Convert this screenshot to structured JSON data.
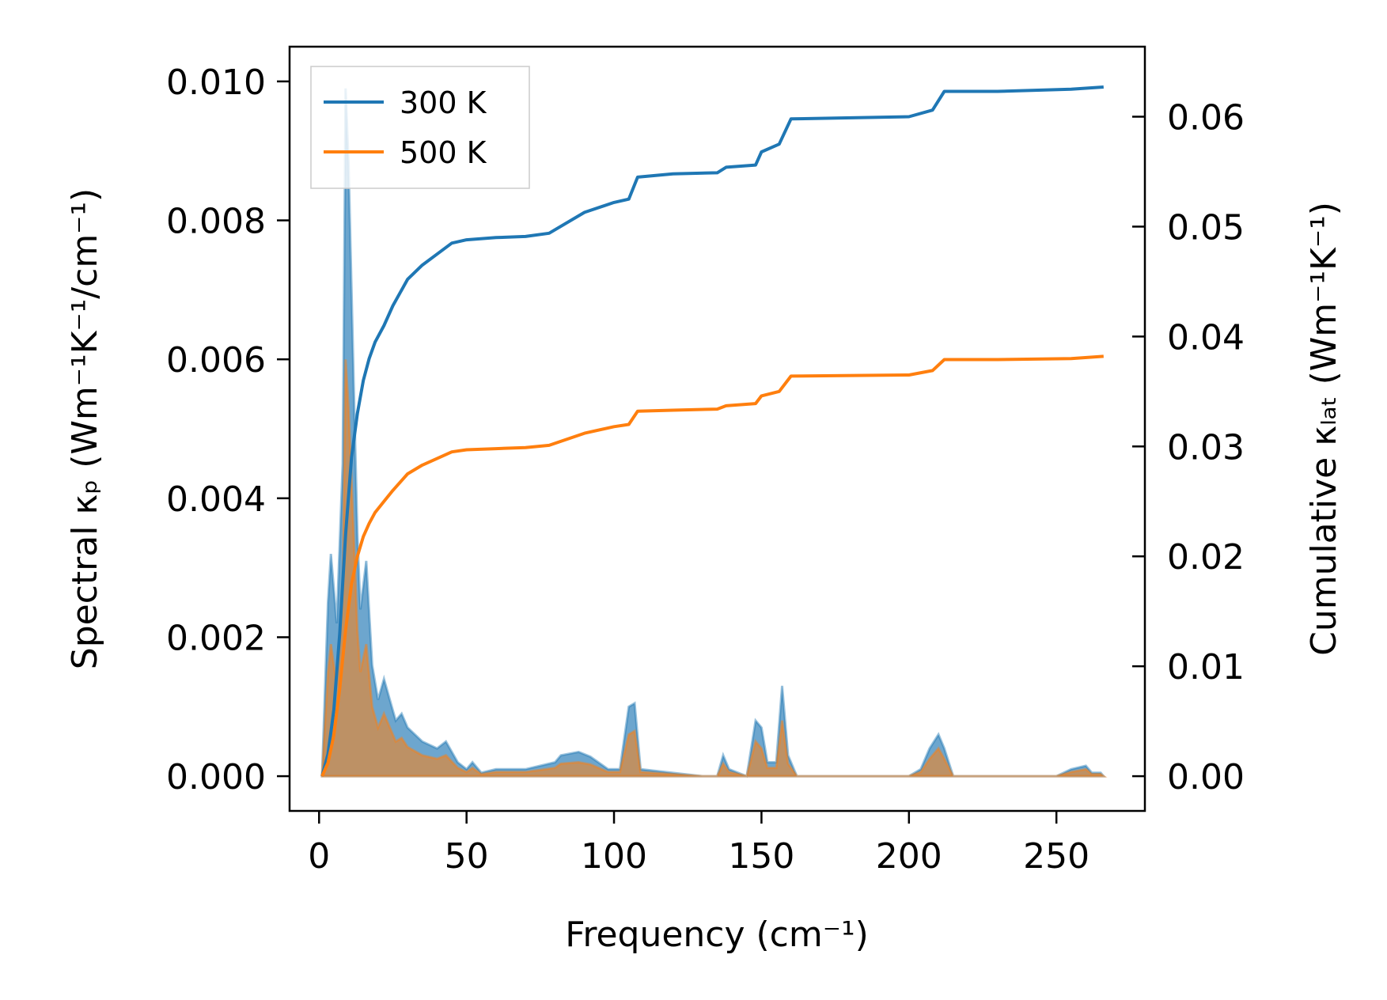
{
  "chart_data": {
    "type": "line",
    "xlabel": "Frequency (cm⁻¹)",
    "ylabel_left": "Spectral κₚ (Wm⁻¹K⁻¹/cm⁻¹)",
    "ylabel_right": "Cumulative κₗₐₜ (Wm⁻¹K⁻¹)",
    "xlim": [
      -10,
      280
    ],
    "ylim_left": [
      -0.0005,
      0.0105
    ],
    "ylim_right": [
      -0.00316,
      0.06637
    ],
    "xticks": [
      0,
      50,
      100,
      150,
      200,
      250
    ],
    "xtick_labels": [
      "0",
      "50",
      "100",
      "150",
      "200",
      "250"
    ],
    "yticks_left": [
      0,
      0.002,
      0.004,
      0.006,
      0.008,
      0.01
    ],
    "ytick_labels_left": [
      "0.000",
      "0.002",
      "0.004",
      "0.006",
      "0.008",
      "0.010"
    ],
    "yticks_right": [
      0,
      0.01,
      0.02,
      0.03,
      0.04,
      0.05,
      0.06
    ],
    "ytick_labels_right": [
      "0.00",
      "0.01",
      "0.02",
      "0.03",
      "0.04",
      "0.05",
      "0.06"
    ],
    "legend": {
      "position": "top-left"
    },
    "series": [
      {
        "name": "300 K",
        "color": "#1f77b4",
        "cumulative": [
          [
            1,
            0
          ],
          [
            3,
            0.002
          ],
          [
            5,
            0.006
          ],
          [
            7,
            0.013
          ],
          [
            9,
            0.022
          ],
          [
            11,
            0.029
          ],
          [
            13,
            0.033
          ],
          [
            15,
            0.036
          ],
          [
            17,
            0.038
          ],
          [
            19,
            0.0395
          ],
          [
            22,
            0.041
          ],
          [
            25,
            0.0428
          ],
          [
            30,
            0.0452
          ],
          [
            35,
            0.0465
          ],
          [
            40,
            0.0475
          ],
          [
            45,
            0.0485
          ],
          [
            50,
            0.0488
          ],
          [
            60,
            0.049
          ],
          [
            70,
            0.0491
          ],
          [
            78,
            0.0494
          ],
          [
            90,
            0.0513
          ],
          [
            100,
            0.0522
          ],
          [
            105,
            0.0525
          ],
          [
            108,
            0.0545
          ],
          [
            120,
            0.0548
          ],
          [
            135,
            0.0549
          ],
          [
            138,
            0.0554
          ],
          [
            148,
            0.0556
          ],
          [
            150,
            0.0568
          ],
          [
            156,
            0.0575
          ],
          [
            160,
            0.0598
          ],
          [
            200,
            0.06
          ],
          [
            208,
            0.0606
          ],
          [
            212,
            0.0623
          ],
          [
            230,
            0.0623
          ],
          [
            255,
            0.0625
          ],
          [
            266,
            0.0627
          ]
        ],
        "spectral": [
          [
            1,
            0
          ],
          [
            3,
            0.0025
          ],
          [
            4,
            0.0032
          ],
          [
            6,
            0.0022
          ],
          [
            8,
            0.0045
          ],
          [
            9,
            0.0099
          ],
          [
            10,
            0.0088
          ],
          [
            12,
            0.0052
          ],
          [
            13,
            0.0035
          ],
          [
            14,
            0.0024
          ],
          [
            16,
            0.0031
          ],
          [
            18,
            0.0016
          ],
          [
            20,
            0.0011
          ],
          [
            22,
            0.0014
          ],
          [
            24,
            0.0011
          ],
          [
            26,
            0.0008
          ],
          [
            28,
            0.0009
          ],
          [
            30,
            0.0007
          ],
          [
            35,
            0.0005
          ],
          [
            40,
            0.0004
          ],
          [
            43,
            0.0005
          ],
          [
            47,
            0.0002
          ],
          [
            50,
            0.0001
          ],
          [
            52,
            0.0002
          ],
          [
            55,
            5e-05
          ],
          [
            60,
            0.0001
          ],
          [
            70,
            0.0001
          ],
          [
            80,
            0.0002
          ],
          [
            82,
            0.0003
          ],
          [
            88,
            0.00035
          ],
          [
            92,
            0.00028
          ],
          [
            98,
            0.0001
          ],
          [
            102,
            0.0001
          ],
          [
            105,
            0.001
          ],
          [
            107,
            0.00105
          ],
          [
            109,
            0.0001
          ],
          [
            130,
            0
          ],
          [
            135,
            0
          ],
          [
            137,
            0.0003
          ],
          [
            139,
            0.0001
          ],
          [
            145,
            0
          ],
          [
            148,
            0.0008
          ],
          [
            150,
            0.0007
          ],
          [
            152,
            0.0002
          ],
          [
            155,
            0.0002
          ],
          [
            157,
            0.0013
          ],
          [
            159,
            0.0003
          ],
          [
            162,
            0
          ],
          [
            200,
            0
          ],
          [
            204,
            0.0001
          ],
          [
            207,
            0.0004
          ],
          [
            210,
            0.0006
          ],
          [
            212,
            0.0004
          ],
          [
            215,
            0
          ],
          [
            250,
            0
          ],
          [
            255,
            0.0001
          ],
          [
            260,
            0.00015
          ],
          [
            262,
            5e-05
          ],
          [
            265,
            5e-05
          ],
          [
            266,
            0
          ]
        ]
      },
      {
        "name": "500 K",
        "color": "#ff7f0e",
        "cumulative": [
          [
            1,
            0
          ],
          [
            3,
            0.0012
          ],
          [
            5,
            0.0037
          ],
          [
            7,
            0.008
          ],
          [
            9,
            0.0133
          ],
          [
            11,
            0.0175
          ],
          [
            13,
            0.02
          ],
          [
            15,
            0.0218
          ],
          [
            17,
            0.023
          ],
          [
            19,
            0.024
          ],
          [
            22,
            0.025
          ],
          [
            25,
            0.026
          ],
          [
            30,
            0.0275
          ],
          [
            35,
            0.0283
          ],
          [
            40,
            0.0289
          ],
          [
            45,
            0.0295
          ],
          [
            50,
            0.0297
          ],
          [
            60,
            0.0298
          ],
          [
            70,
            0.0299
          ],
          [
            78,
            0.0301
          ],
          [
            90,
            0.0312
          ],
          [
            100,
            0.0318
          ],
          [
            105,
            0.032
          ],
          [
            108,
            0.0332
          ],
          [
            120,
            0.0333
          ],
          [
            135,
            0.0334
          ],
          [
            138,
            0.0337
          ],
          [
            148,
            0.0339
          ],
          [
            150,
            0.0346
          ],
          [
            156,
            0.035
          ],
          [
            160,
            0.0364
          ],
          [
            200,
            0.0365
          ],
          [
            208,
            0.0369
          ],
          [
            212,
            0.0379
          ],
          [
            230,
            0.0379
          ],
          [
            255,
            0.038
          ],
          [
            266,
            0.0382
          ]
        ],
        "spectral": [
          [
            1,
            0
          ],
          [
            3,
            0.0015
          ],
          [
            4,
            0.0019
          ],
          [
            6,
            0.0013
          ],
          [
            8,
            0.0027
          ],
          [
            9,
            0.006
          ],
          [
            10,
            0.0053
          ],
          [
            12,
            0.0032
          ],
          [
            13,
            0.0021
          ],
          [
            14,
            0.0015
          ],
          [
            16,
            0.0019
          ],
          [
            18,
            0.001
          ],
          [
            20,
            0.0007
          ],
          [
            22,
            0.0009
          ],
          [
            24,
            0.0007
          ],
          [
            26,
            0.0005
          ],
          [
            28,
            0.00055
          ],
          [
            30,
            0.00042
          ],
          [
            35,
            0.0003
          ],
          [
            40,
            0.00025
          ],
          [
            43,
            0.0003
          ],
          [
            47,
            0.00012
          ],
          [
            50,
            6e-05
          ],
          [
            52,
            0.00012
          ],
          [
            55,
            3e-05
          ],
          [
            60,
            6e-05
          ],
          [
            70,
            6e-05
          ],
          [
            80,
            0.00012
          ],
          [
            82,
            0.00018
          ],
          [
            88,
            0.0002
          ],
          [
            92,
            0.00017
          ],
          [
            98,
            6e-05
          ],
          [
            102,
            6e-05
          ],
          [
            105,
            0.0006
          ],
          [
            107,
            0.00065
          ],
          [
            109,
            6e-05
          ],
          [
            130,
            0
          ],
          [
            135,
            0
          ],
          [
            137,
            0.00018
          ],
          [
            139,
            6e-05
          ],
          [
            145,
            0
          ],
          [
            148,
            0.0005
          ],
          [
            150,
            0.0004
          ],
          [
            152,
            0.00012
          ],
          [
            155,
            0.00012
          ],
          [
            157,
            0.0008
          ],
          [
            159,
            0.00018
          ],
          [
            162,
            0
          ],
          [
            200,
            0
          ],
          [
            204,
            6e-05
          ],
          [
            207,
            0.00025
          ],
          [
            210,
            0.0004
          ],
          [
            212,
            0.00025
          ],
          [
            215,
            0
          ],
          [
            250,
            0
          ],
          [
            255,
            6e-05
          ],
          [
            260,
            0.0001
          ],
          [
            262,
            3e-05
          ],
          [
            265,
            3e-05
          ],
          [
            266,
            0
          ]
        ]
      }
    ]
  }
}
